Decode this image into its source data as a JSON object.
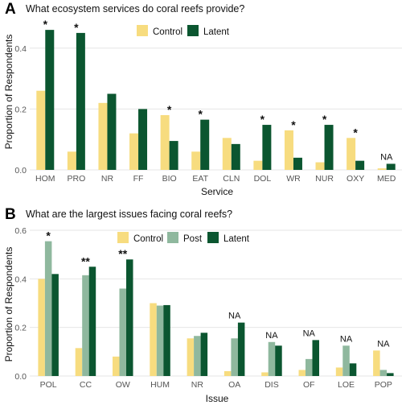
{
  "colors": {
    "Control": "#f7dc7f",
    "Post": "#8fb89e",
    "Latent": "#0b5630"
  },
  "chart_data": [
    {
      "panel_label": "A",
      "type": "bar",
      "title": "What ecosystem services do coral reefs provide?",
      "xlabel": "Service",
      "ylabel": "Proportion of Respondents",
      "ylim": [
        0,
        0.5
      ],
      "yticks": [
        "0.0",
        "0.2",
        "0.4"
      ],
      "legend_position": "top-center",
      "categories": [
        "HOM",
        "PRO",
        "NR",
        "FF",
        "BIO",
        "EAT",
        "CLN",
        "DOL",
        "WR",
        "NUR",
        "OXY",
        "MED"
      ],
      "series": [
        {
          "name": "Control",
          "values": [
            0.26,
            0.06,
            0.22,
            0.12,
            0.18,
            0.06,
            0.105,
            0.03,
            0.13,
            0.025,
            0.105,
            0.005
          ]
        },
        {
          "name": "Latent",
          "values": [
            0.46,
            0.45,
            0.25,
            0.2,
            0.095,
            0.165,
            0.085,
            0.148,
            0.04,
            0.148,
            0.03,
            0.02
          ]
        }
      ],
      "annotations": [
        "*",
        "*",
        "",
        "",
        "*",
        "*",
        "",
        "*",
        "*",
        "*",
        "*",
        "NA"
      ]
    },
    {
      "panel_label": "B",
      "type": "bar",
      "title": "What are the largest issues facing coral reefs?",
      "xlabel": "Issue",
      "ylabel": "Proportion of Respondents",
      "ylim": [
        0,
        0.62
      ],
      "yticks": [
        "0.0",
        "0.2",
        "0.4",
        "0.6"
      ],
      "legend_position": "top-center",
      "categories": [
        "POL",
        "CC",
        "OW",
        "HUM",
        "NR",
        "OA",
        "DIS",
        "OF",
        "LOE",
        "POP"
      ],
      "series": [
        {
          "name": "Control",
          "values": [
            0.4,
            0.115,
            0.08,
            0.3,
            0.155,
            0.02,
            0.015,
            0.025,
            0.035,
            0.105
          ]
        },
        {
          "name": "Post",
          "values": [
            0.555,
            0.415,
            0.36,
            0.29,
            0.165,
            0.155,
            0.14,
            0.07,
            0.125,
            0.025
          ]
        },
        {
          "name": "Latent",
          "values": [
            0.42,
            0.45,
            0.48,
            0.292,
            0.178,
            0.22,
            0.125,
            0.148,
            0.052,
            0.012
          ]
        }
      ],
      "annotations": [
        "*",
        "**",
        "**",
        "",
        "",
        "NA",
        "NA",
        "NA",
        "NA",
        "NA"
      ]
    }
  ]
}
